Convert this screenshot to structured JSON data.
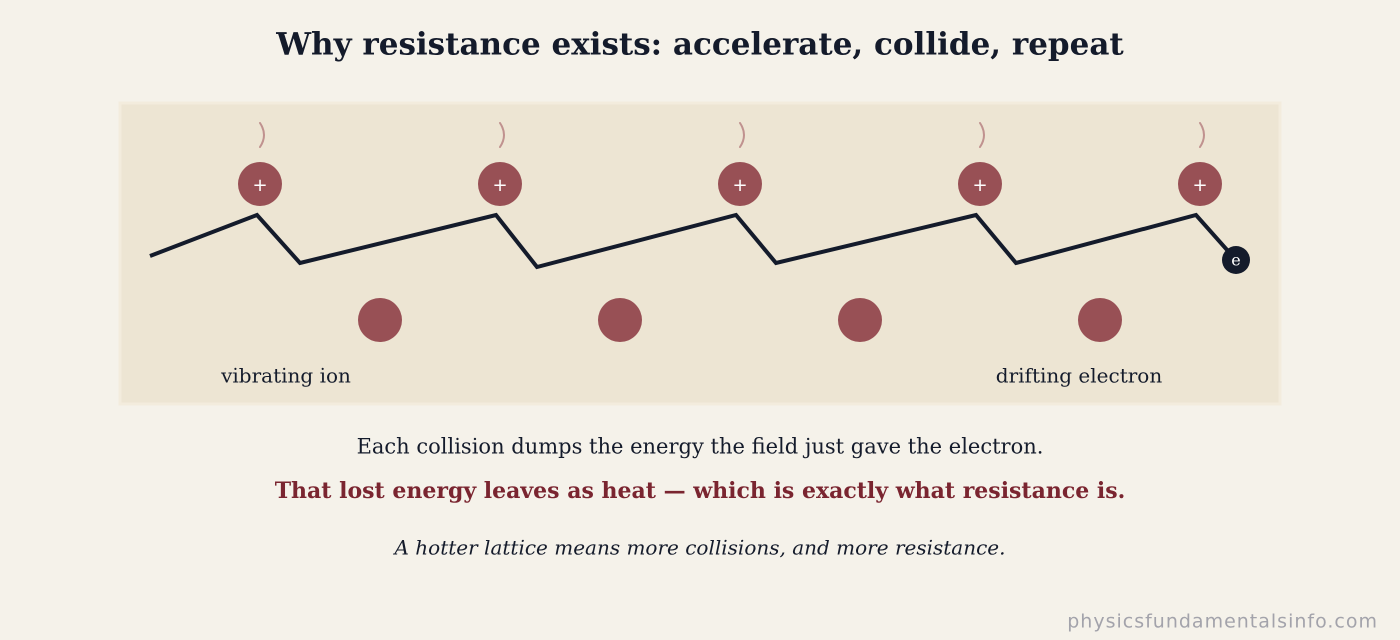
{
  "header": {
    "title": "Why resistance exists: accelerate, collide, repeat"
  },
  "diagram": {
    "top_ions": [
      {
        "label": "+"
      },
      {
        "label": "+"
      },
      {
        "label": "+"
      },
      {
        "label": "+"
      },
      {
        "label": "+"
      }
    ],
    "electron_label": "e",
    "ion_label": "vibrating ion",
    "electron_caption": "drifting electron"
  },
  "captions": {
    "line1": "Each collision dumps the energy the field just gave the electron.",
    "line2": "That lost energy leaves as heat — which is exactly what resistance is.",
    "line3": "A hotter lattice means more collisions, and more resistance."
  },
  "footer": {
    "watermark": "physicsfundamentalsinfo.com"
  }
}
